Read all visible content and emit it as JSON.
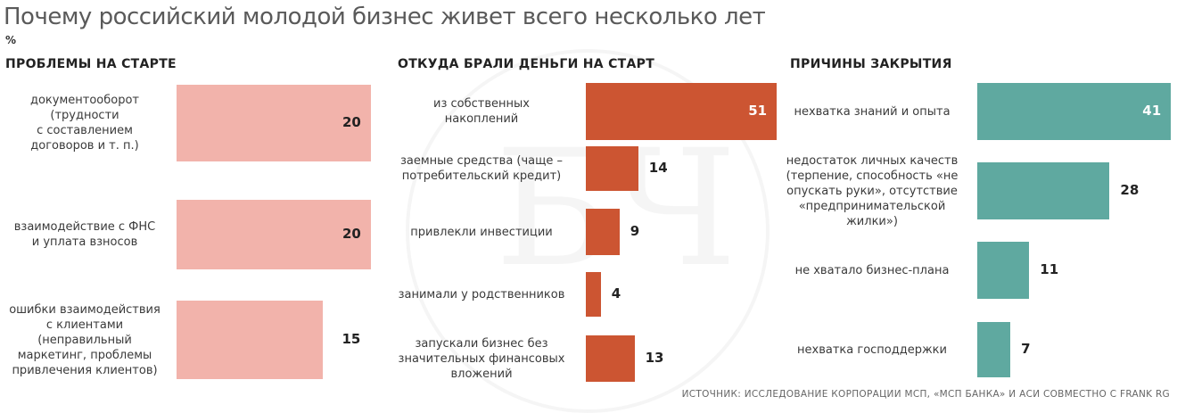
{
  "title": "Почему российский молодой бизнес живет всего несколько лет",
  "unit": "%",
  "source": "ИСТОЧНИК: ИССЛЕДОВАНИЕ КОРПОРАЦИИ МСП, «МСП БАНКА» И АСИ СОВМЕСТНО С FRANK RG",
  "colors": {
    "panel1": "#f2b3ab",
    "panel2": "#cc5532",
    "panel3": "#5fa9a0"
  },
  "chart_data": [
    {
      "type": "bar",
      "title": "ПРОБЛЕМЫ НА СТАРТЕ",
      "categories": [
        [
          "документооборот",
          "(трудности",
          "с составлением",
          "договоров и т. п.)"
        ],
        [
          "взаимодействие с ФНС",
          "и уплата взносов"
        ],
        [
          "ошибки взаимодействия",
          "с клиентами",
          "(неправильный",
          "маркетинг, проблемы",
          "привлечения клиентов)"
        ]
      ],
      "values": [
        20,
        20,
        15
      ],
      "labels": [
        "20",
        "20",
        "15"
      ]
    },
    {
      "type": "bar",
      "title": "ОТКУДА БРАЛИ ДЕНЬГИ НА СТАРТ",
      "categories": [
        [
          "из собственных",
          "накоплений"
        ],
        [
          "заемные средства (чаще –",
          "потребительский кредит)"
        ],
        [
          "привлекли инвестиции"
        ],
        [
          "занимали у родственников"
        ],
        [
          "запускали бизнес без",
          "значительных финансовых",
          "вложений"
        ]
      ],
      "values": [
        51,
        14,
        9,
        4,
        13
      ],
      "labels": [
        "51",
        "14",
        "9",
        "4",
        "13"
      ]
    },
    {
      "type": "bar",
      "title": "ПРИЧИНЫ ЗАКРЫТИЯ",
      "categories": [
        [
          "нехватка знаний и опыта"
        ],
        [
          "недостаток личных качеств",
          "(терпение, способность «не",
          "опускать руки», отсутствие",
          "«предпринимательской",
          "жилки»)"
        ],
        [
          "не хватало бизнес-плана"
        ],
        [
          "нехватка господдержки"
        ]
      ],
      "values": [
        41,
        28,
        11,
        7
      ],
      "labels": [
        "41",
        "28",
        "11",
        "7"
      ]
    }
  ]
}
